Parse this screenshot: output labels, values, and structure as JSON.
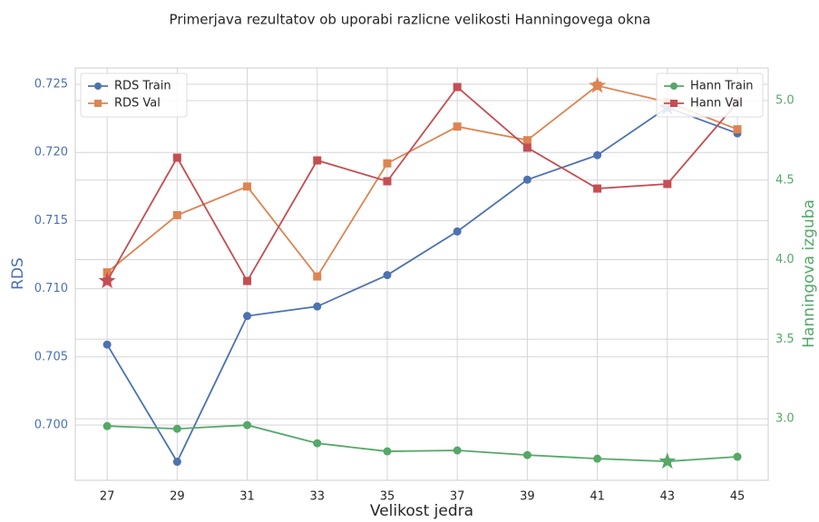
{
  "chart_data": {
    "type": "line",
    "title": "Primerjava rezultatov ob uporabi razlicne velikosti Hanningovega okna",
    "xlabel": "Velikost jedra",
    "ylabel": "RDS",
    "y2label": "Hanningova izguba",
    "x": [
      27,
      29,
      31,
      33,
      35,
      37,
      39,
      41,
      43,
      45
    ],
    "xlim": [
      26.09,
      45.88
    ],
    "xticks": [
      27,
      29,
      31,
      33,
      35,
      37,
      39,
      41,
      43,
      45
    ],
    "ylim": [
      0.69594,
      0.7262
    ],
    "yticks": [
      {
        "value": 0.7,
        "label": "0.700"
      },
      {
        "value": 0.705,
        "label": "0.705"
      },
      {
        "value": 0.71,
        "label": "0.710"
      },
      {
        "value": 0.715,
        "label": "0.715"
      },
      {
        "value": 0.72,
        "label": "0.720"
      },
      {
        "value": 0.725,
        "label": "0.725"
      }
    ],
    "y2lim": [
      2.613,
      5.205
    ],
    "y2ticks": [
      {
        "value": 3.0,
        "label": "3.0"
      },
      3.5,
      {
        "value": 4.0,
        "label": "4.0"
      },
      4.5,
      {
        "value": 5.0,
        "label": "5.0"
      }
    ],
    "grid": true,
    "legend": {
      "y": "upper left",
      "y2": "upper right"
    },
    "y_color": "#4c72b0",
    "y2_color": "#55a868",
    "series": [
      {
        "name": "RDS Train",
        "color": "#4c72b0",
        "marker": "circle",
        "values": [
          0.7059,
          0.6973,
          0.708,
          0.7087,
          0.711,
          0.7142,
          0.718,
          0.7198,
          0.7233,
          0.7214
        ]
      },
      {
        "name": "RDS Val",
        "color": "#dd8452",
        "marker": "square",
        "values": [
          0.7112,
          0.7154,
          0.7175,
          0.7109,
          0.7192,
          0.7219,
          0.7209,
          0.7249,
          0.7237,
          0.7217
        ]
      },
      {
        "name": "Hann Train",
        "color": "#55a868",
        "marker": "circle",
        "axis": "y2",
        "values": [
          2.954,
          2.937,
          2.96,
          2.846,
          2.795,
          2.801,
          2.772,
          2.749,
          2.732,
          2.761
        ]
      },
      {
        "name": "Hann Val",
        "color": "#c44e52",
        "marker": "square",
        "axis": "y2",
        "values": [
          3.866,
          4.641,
          3.866,
          4.624,
          4.493,
          5.085,
          4.704,
          4.447,
          4.476,
          4.989
        ]
      }
    ]
  }
}
